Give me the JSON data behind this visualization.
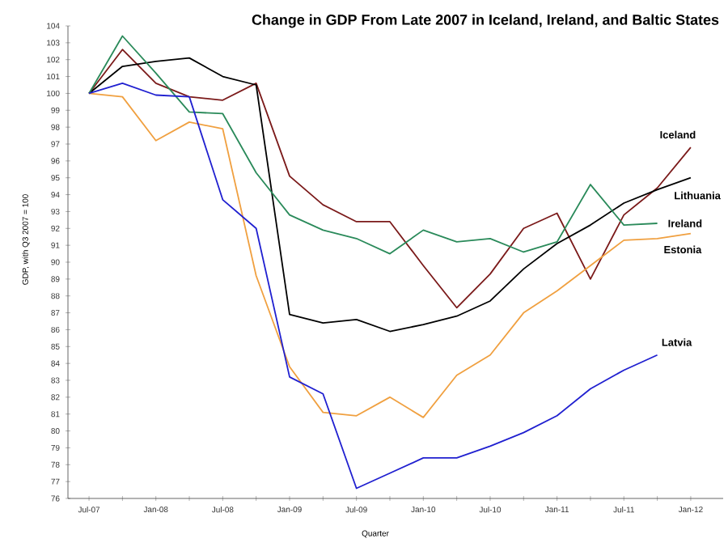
{
  "chart_data": {
    "type": "line",
    "title": "Change in GDP From Late 2007 in Iceland, Ireland, and Baltic States",
    "xlabel": "Quarter",
    "ylabel": "GDP, with Q3 2007 = 100",
    "categories": [
      "Jul-07",
      null,
      "Jan-08",
      null,
      "Jul-08",
      null,
      "Jan-09",
      null,
      "Jul-09",
      null,
      "Jan-10",
      null,
      "Jul-10",
      null,
      "Jan-11",
      null,
      "Jul-11",
      null,
      "Jan-12"
    ],
    "ylim": [
      76,
      104
    ],
    "yticks": [
      76,
      77,
      78,
      79,
      80,
      81,
      82,
      83,
      84,
      85,
      86,
      87,
      88,
      89,
      90,
      91,
      92,
      93,
      94,
      95,
      96,
      97,
      98,
      99,
      100,
      101,
      102,
      103,
      104
    ],
    "legend": false,
    "grid": false,
    "marker": "none",
    "line_style": "solid",
    "series": [
      {
        "name": "Iceland",
        "color": "#7b1a1a",
        "values": [
          100,
          102.6,
          100.6,
          99.8,
          99.6,
          100.6,
          95.1,
          93.4,
          92.4,
          92.4,
          89.8,
          87.3,
          89.3,
          92.0,
          92.9,
          89.0,
          92.8,
          94.4,
          96.8
        ]
      },
      {
        "name": "Lithuania",
        "color": "#000000",
        "values": [
          100,
          101.6,
          101.9,
          102.1,
          101.0,
          100.5,
          86.9,
          86.4,
          86.6,
          85.9,
          86.3,
          86.8,
          87.7,
          89.6,
          91.1,
          92.2,
          93.5,
          94.3,
          95.0
        ]
      },
      {
        "name": "Ireland",
        "color": "#2a8a5a",
        "values": [
          100,
          103.4,
          101.2,
          98.9,
          98.8,
          95.3,
          92.8,
          91.9,
          91.4,
          90.5,
          91.9,
          91.2,
          91.4,
          90.6,
          91.2,
          94.6,
          92.2,
          92.3,
          null
        ]
      },
      {
        "name": "Estonia",
        "color": "#f0a040",
        "values": [
          100,
          99.8,
          97.2,
          98.3,
          97.9,
          89.2,
          83.8,
          81.1,
          80.9,
          82.0,
          80.8,
          83.3,
          84.5,
          87.0,
          88.3,
          89.8,
          91.3,
          91.4,
          91.7
        ]
      },
      {
        "name": "Latvia",
        "color": "#2020d0",
        "values": [
          100,
          100.6,
          99.9,
          99.8,
          93.7,
          92.0,
          83.2,
          82.2,
          76.6,
          77.5,
          78.4,
          78.4,
          79.1,
          79.9,
          80.9,
          82.5,
          83.6,
          84.5,
          null
        ]
      }
    ]
  }
}
